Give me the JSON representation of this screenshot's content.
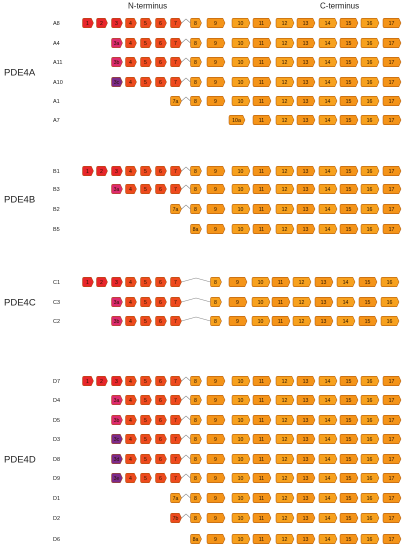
{
  "header": {
    "left": "N-terminus",
    "right": "C-terminus"
  },
  "colors": {
    "red": "#e8262b",
    "red_orange": "#ee4a1e",
    "pink": "#dd2a6e",
    "purple": "#7c2a8a",
    "orange_dark": "#ef6a1a",
    "orange": "#f59a1c",
    "connector": "#888888",
    "border": "#a8520a"
  },
  "families": [
    {
      "name": "PDE4A",
      "isoforms": [
        {
          "label": "A8",
          "start": "1",
          "first": "1"
        },
        {
          "label": "A4",
          "start": "3a",
          "first": "3a"
        },
        {
          "label": "A11",
          "start": "3b",
          "first": "3b"
        },
        {
          "label": "A10",
          "start": "3c",
          "first": "3c"
        },
        {
          "label": "A1",
          "start": "7a",
          "first": "7a"
        },
        {
          "label": "A7",
          "start": "10a",
          "first": "10a"
        }
      ]
    },
    {
      "name": "PDE4B",
      "isoforms": [
        {
          "label": "B1",
          "start": "1",
          "first": "1"
        },
        {
          "label": "B3",
          "start": "3a",
          "first": "3a"
        },
        {
          "label": "B2",
          "start": "7a",
          "first": "7a"
        },
        {
          "label": "B5",
          "start": "8a",
          "first": "8a"
        }
      ]
    },
    {
      "name": "PDE4C",
      "isoforms": [
        {
          "label": "C1",
          "start": "1",
          "first": "1"
        },
        {
          "label": "C3",
          "start": "3a",
          "first": "3a"
        },
        {
          "label": "C2",
          "start": "3b",
          "first": "3b"
        }
      ]
    },
    {
      "name": "PDE4D",
      "isoforms": [
        {
          "label": "D7",
          "start": "1",
          "first": "1"
        },
        {
          "label": "D4",
          "start": "3a",
          "first": "3a"
        },
        {
          "label": "D5",
          "start": "3b",
          "first": "3b"
        },
        {
          "label": "D3",
          "start": "3c",
          "first": "3c"
        },
        {
          "label": "D8",
          "start": "3d",
          "first": "3d"
        },
        {
          "label": "D9",
          "start": "3e",
          "first": "3e"
        },
        {
          "label": "D1",
          "start": "7a",
          "first": "7a"
        },
        {
          "label": "D2",
          "start": "7b",
          "first": "7b"
        },
        {
          "label": "D6",
          "start": "8a",
          "first": "8a"
        }
      ]
    }
  ]
}
